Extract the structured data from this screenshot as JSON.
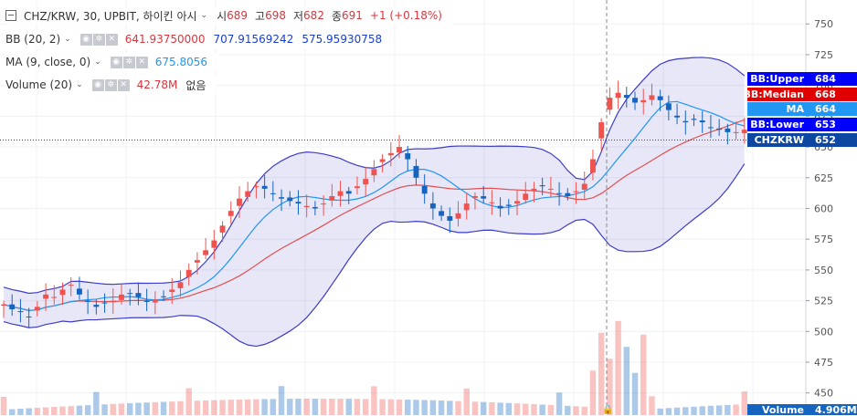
{
  "header": {
    "symbol": "CHZ/KRW, 30, UPBIT, 하이킨 아시",
    "ohlc": [
      {
        "label": "시",
        "value": "689"
      },
      {
        "label": "고",
        "value": "698"
      },
      {
        "label": "저",
        "value": "682"
      },
      {
        "label": "종",
        "value": "691"
      }
    ],
    "change": "+1 (+0.18%)"
  },
  "indicators": {
    "bb": {
      "name": "BB (20, 2)",
      "median": "641.93750000",
      "upper": "707.91569242",
      "lower": "575.95930758"
    },
    "ma": {
      "name": "MA (9, close, 0)",
      "value": "675.8056"
    },
    "volume": {
      "name": "Volume (20)",
      "value": "42.78M",
      "extra": "없음"
    }
  },
  "axis_tags": {
    "bb_upper": {
      "label": "BB:Upper",
      "value": "684"
    },
    "bb_median": {
      "label": "BB:Median",
      "value": "668"
    },
    "ma": {
      "label": "MA",
      "value": "664"
    },
    "bb_lower": {
      "label": "BB:Lower",
      "value": "653"
    },
    "price": {
      "label": "CHZKRW",
      "value": "652"
    },
    "volume": {
      "label": "Volume",
      "value": "4.906M"
    }
  },
  "colors": {
    "up": "#ef5350",
    "down": "#1565c0",
    "bb_band": "#3c3cc8",
    "median": "#e05050",
    "ma": "#2196f3",
    "tag_blue": "#0000ff",
    "tag_red": "#e00000",
    "tag_ma": "#2196f3",
    "price": "#0d47a1"
  },
  "chart_data": {
    "type": "candlestick",
    "y_axis_ticks": [
      450,
      475,
      500,
      525,
      550,
      575,
      600,
      625,
      650,
      675,
      700,
      725,
      750
    ],
    "ylim": [
      432,
      765
    ],
    "closes": [
      522,
      518,
      516,
      512,
      520,
      530,
      528,
      534,
      538,
      530,
      524,
      520,
      523,
      525,
      530,
      531,
      528,
      524,
      526,
      528,
      534,
      540,
      550,
      558,
      566,
      574,
      586,
      598,
      608,
      614,
      618,
      616,
      612,
      608,
      606,
      604,
      602,
      600,
      604,
      610,
      614,
      612,
      618,
      624,
      632,
      640,
      645,
      650,
      640,
      625,
      612,
      600,
      594,
      590,
      596,
      604,
      610,
      608,
      605,
      600,
      602,
      606,
      612,
      616,
      618,
      616,
      612,
      610,
      614,
      620,
      640,
      670,
      690,
      694,
      690,
      686,
      688,
      692,
      688,
      680,
      674,
      670,
      672,
      670,
      666,
      664,
      662,
      662,
      664
    ],
    "volume_y_axis": "hidden"
  }
}
